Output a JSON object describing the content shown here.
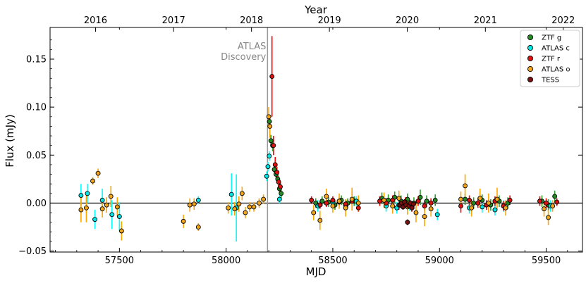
{
  "chart_data": {
    "type": "scatter",
    "xlabel": "MJD",
    "ylabel": "Flux (mJy)",
    "top_xlabel": "Year",
    "xlim": [
      57175,
      59670
    ],
    "ylim": [
      -0.051,
      0.183
    ],
    "grid": false,
    "legend_position": "top-right",
    "x_ticks": [
      57500,
      58000,
      58500,
      59000,
      59500
    ],
    "y_ticks": [
      -0.05,
      0.0,
      0.05,
      0.1,
      0.15
    ],
    "y_tick_labels": [
      "−0.05",
      "0.00",
      "0.05",
      "0.10",
      "0.15"
    ],
    "top_ticks": [
      {
        "label": "2016",
        "mjd": 57388
      },
      {
        "label": "2017",
        "mjd": 57754
      },
      {
        "label": "2018",
        "mjd": 58119
      },
      {
        "label": "2019",
        "mjd": 58484
      },
      {
        "label": "2020",
        "mjd": 58849
      },
      {
        "label": "2021",
        "mjd": 59215
      },
      {
        "label": "2022",
        "mjd": 59580
      }
    ],
    "annotation": {
      "text_lines": [
        "ATLAS",
        "Discovery"
      ],
      "x": 58194
    },
    "baseline_y": 0.0,
    "series": [
      {
        "name": "ZTF g",
        "color": "#228b22",
        "errcolor": "#2ca02c",
        "points": [
          [
            58203,
            0.085,
            0.006
          ],
          [
            58210,
            0.065,
            0.006
          ],
          [
            58218,
            0.06,
            0.006
          ],
          [
            58226,
            0.035,
            0.005
          ],
          [
            58234,
            0.03,
            0.005
          ],
          [
            58242,
            0.025,
            0.005
          ],
          [
            58250,
            0.015,
            0.005
          ],
          [
            58258,
            0.01,
            0.005
          ],
          [
            58420,
            0.0,
            0.005
          ],
          [
            58450,
            0.002,
            0.005
          ],
          [
            58480,
            0.001,
            0.005
          ],
          [
            58510,
            -0.002,
            0.005
          ],
          [
            58540,
            0.003,
            0.005
          ],
          [
            58570,
            0.0,
            0.005
          ],
          [
            58600,
            0.002,
            0.005
          ],
          [
            58730,
            0.005,
            0.006
          ],
          [
            58760,
            0.003,
            0.006
          ],
          [
            58790,
            0.006,
            0.006
          ],
          [
            58820,
            0.002,
            0.006
          ],
          [
            58850,
            0.004,
            0.006
          ],
          [
            58880,
            0.0,
            0.006
          ],
          [
            58910,
            0.006,
            0.008
          ],
          [
            58940,
            0.002,
            0.006
          ],
          [
            58980,
            0.003,
            0.006
          ],
          [
            59120,
            0.004,
            0.006
          ],
          [
            59160,
            0.0,
            0.006
          ],
          [
            59200,
            0.003,
            0.006
          ],
          [
            59240,
            -0.002,
            0.006
          ],
          [
            59280,
            0.002,
            0.006
          ],
          [
            59320,
            0.0,
            0.006
          ],
          [
            59480,
            0.002,
            0.006
          ],
          [
            59510,
            -0.002,
            0.006
          ],
          [
            59540,
            0.007,
            0.006
          ]
        ]
      },
      {
        "name": "ATLAS c",
        "color": "#00e5e5",
        "errcolor": "#00ffff",
        "points": [
          [
            57320,
            0.008,
            0.012
          ],
          [
            57350,
            0.01,
            0.01
          ],
          [
            57385,
            -0.017,
            0.01
          ],
          [
            57420,
            0.003,
            0.012
          ],
          [
            57465,
            -0.012,
            0.015
          ],
          [
            57500,
            -0.014,
            0.015
          ],
          [
            57870,
            0.003,
            0.004
          ],
          [
            58025,
            0.009,
            0.022
          ],
          [
            58048,
            -0.005,
            0.035
          ],
          [
            58190,
            0.028,
            0.005
          ],
          [
            58196,
            0.038,
            0.005
          ],
          [
            58202,
            0.049,
            0.005
          ],
          [
            58250,
            0.004,
            0.004
          ],
          [
            58430,
            -0.003,
            0.006
          ],
          [
            58500,
            0.001,
            0.005
          ],
          [
            58560,
            -0.002,
            0.005
          ],
          [
            58610,
            0.002,
            0.005
          ],
          [
            58750,
            -0.003,
            0.006
          ],
          [
            58800,
            -0.005,
            0.006
          ],
          [
            58860,
            -0.002,
            0.006
          ],
          [
            58990,
            -0.012,
            0.006
          ],
          [
            59140,
            -0.005,
            0.006
          ],
          [
            59200,
            -0.004,
            0.006
          ],
          [
            59260,
            -0.007,
            0.006
          ],
          [
            59300,
            -0.003,
            0.006
          ],
          [
            59520,
            -0.003,
            0.006
          ]
        ]
      },
      {
        "name": "ZTF r",
        "color": "#dd1111",
        "errcolor": "#ff0000",
        "points": [
          [
            58215,
            0.132,
            0.042
          ],
          [
            58222,
            0.06,
            0.01
          ],
          [
            58230,
            0.04,
            0.008
          ],
          [
            58238,
            0.032,
            0.006
          ],
          [
            58246,
            0.022,
            0.006
          ],
          [
            58254,
            0.017,
            0.005
          ],
          [
            58400,
            0.003,
            0.004
          ],
          [
            58440,
            -0.002,
            0.004
          ],
          [
            58470,
            0.0,
            0.004
          ],
          [
            58500,
            0.003,
            0.004
          ],
          [
            58530,
            0.001,
            0.004
          ],
          [
            58560,
            -0.001,
            0.004
          ],
          [
            58590,
            0.002,
            0.004
          ],
          [
            58620,
            -0.005,
            0.004
          ],
          [
            58720,
            0.002,
            0.005
          ],
          [
            58750,
            0.0,
            0.005
          ],
          [
            58780,
            0.003,
            0.005
          ],
          [
            58810,
            -0.002,
            0.005
          ],
          [
            58840,
            0.001,
            0.005
          ],
          [
            58870,
            -0.004,
            0.005
          ],
          [
            58900,
            0.002,
            0.005
          ],
          [
            58930,
            -0.003,
            0.005
          ],
          [
            58960,
            0.0,
            0.005
          ],
          [
            59100,
            -0.003,
            0.007
          ],
          [
            59140,
            0.003,
            0.005
          ],
          [
            59180,
            0.0,
            0.005
          ],
          [
            59220,
            -0.002,
            0.005
          ],
          [
            59260,
            0.002,
            0.005
          ],
          [
            59300,
            -0.003,
            0.005
          ],
          [
            59330,
            0.003,
            0.005
          ],
          [
            59470,
            0.002,
            0.005
          ],
          [
            59500,
            0.0,
            0.005
          ],
          [
            59550,
            0.001,
            0.004
          ]
        ]
      },
      {
        "name": "ATLAS o",
        "color": "#f2a51a",
        "errcolor": "#ffa500",
        "points": [
          [
            57320,
            -0.007,
            0.013
          ],
          [
            57345,
            -0.005,
            0.015
          ],
          [
            57375,
            0.023,
            0.004
          ],
          [
            57400,
            0.031,
            0.005
          ],
          [
            57420,
            -0.006,
            0.009
          ],
          [
            57440,
            -0.002,
            0.008
          ],
          [
            57460,
            0.007,
            0.011
          ],
          [
            57490,
            -0.004,
            0.01
          ],
          [
            57510,
            -0.029,
            0.01
          ],
          [
            57800,
            -0.019,
            0.007
          ],
          [
            57830,
            -0.002,
            0.007
          ],
          [
            57850,
            -0.001,
            0.006
          ],
          [
            57870,
            -0.025,
            0.004
          ],
          [
            58010,
            -0.005,
            0.006
          ],
          [
            58040,
            -0.006,
            0.007
          ],
          [
            58060,
            -0.001,
            0.008
          ],
          [
            58075,
            0.01,
            0.007
          ],
          [
            58090,
            -0.01,
            0.006
          ],
          [
            58110,
            -0.004,
            0.005
          ],
          [
            58130,
            -0.004,
            0.005
          ],
          [
            58155,
            0.0,
            0.005
          ],
          [
            58175,
            0.004,
            0.005
          ],
          [
            58200,
            0.09,
            0.01
          ],
          [
            58205,
            0.08,
            0.012
          ],
          [
            58410,
            -0.01,
            0.008
          ],
          [
            58440,
            -0.018,
            0.01
          ],
          [
            58470,
            0.007,
            0.008
          ],
          [
            58500,
            -0.003,
            0.007
          ],
          [
            58530,
            0.002,
            0.008
          ],
          [
            58560,
            -0.005,
            0.009
          ],
          [
            58590,
            0.004,
            0.012
          ],
          [
            58620,
            0.0,
            0.008
          ],
          [
            58740,
            0.003,
            0.008
          ],
          [
            58780,
            -0.003,
            0.008
          ],
          [
            58810,
            0.005,
            0.008
          ],
          [
            58850,
            -0.004,
            0.008
          ],
          [
            58890,
            -0.01,
            0.01
          ],
          [
            58930,
            -0.014,
            0.01
          ],
          [
            58960,
            -0.006,
            0.008
          ],
          [
            59100,
            0.004,
            0.008
          ],
          [
            59120,
            0.018,
            0.012
          ],
          [
            59150,
            -0.005,
            0.009
          ],
          [
            59190,
            0.005,
            0.01
          ],
          [
            59230,
            0.0,
            0.01
          ],
          [
            59270,
            0.004,
            0.012
          ],
          [
            59310,
            -0.005,
            0.008
          ],
          [
            59490,
            -0.006,
            0.008
          ],
          [
            59510,
            -0.015,
            0.008
          ],
          [
            59530,
            -0.003,
            0.006
          ]
        ]
      },
      {
        "name": "TESS",
        "color": "#7a0f0f",
        "errcolor": "#7a0f0f",
        "points": [
          [
            58815,
            -0.002,
            0.003
          ],
          [
            58822,
            0.0,
            0.003
          ],
          [
            58829,
            -0.004,
            0.003
          ],
          [
            58836,
            0.001,
            0.003
          ],
          [
            58843,
            -0.002,
            0.003
          ],
          [
            58850,
            -0.02,
            0.003
          ],
          [
            58857,
            -0.003,
            0.003
          ],
          [
            58864,
            0.0,
            0.003
          ],
          [
            58871,
            -0.005,
            0.003
          ],
          [
            58878,
            -0.001,
            0.003
          ]
        ]
      }
    ]
  }
}
